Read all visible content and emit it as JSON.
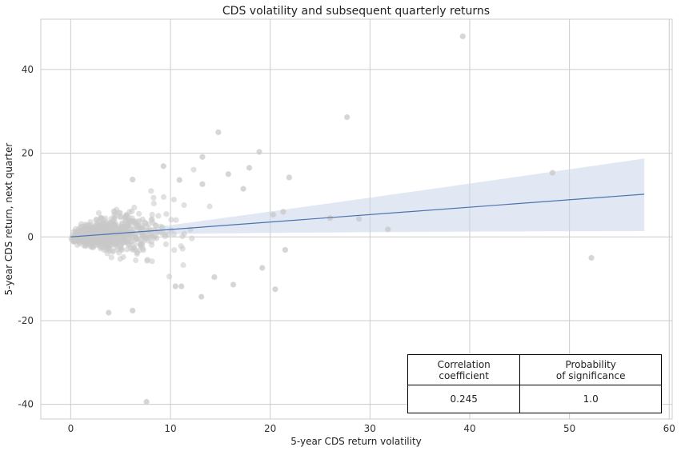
{
  "chart_data": {
    "type": "scatter",
    "title": "CDS volatility and subsequent quarterly returns",
    "xlabel": "5-year CDS return volatility",
    "ylabel": "5-year CDS return, next quarter",
    "xlim": [
      -3,
      60.3
    ],
    "ylim": [
      -43.5,
      52
    ],
    "xticks": [
      0,
      10,
      20,
      30,
      40,
      50,
      60
    ],
    "yticks": [
      -40,
      -20,
      0,
      20,
      40
    ],
    "grid": true,
    "point_color": "#c8c8c8",
    "regression": {
      "x_range": [
        0,
        57.5
      ],
      "y_at_x0": 0,
      "y_at_xmax": 10.2,
      "ci_upper_at_xmax": 18.6,
      "ci_lower_at_xmax": 1.5,
      "line_color": "#4c72b0",
      "band_color": "#c8d5ea"
    },
    "notable_points": [
      {
        "x": 39.3,
        "y": 47.9
      },
      {
        "x": 27.7,
        "y": 28.6
      },
      {
        "x": 14.8,
        "y": 25.0
      },
      {
        "x": 18.9,
        "y": 20.3
      },
      {
        "x": 13.2,
        "y": 19.1
      },
      {
        "x": 48.3,
        "y": 15.3
      },
      {
        "x": 9.3,
        "y": 16.9
      },
      {
        "x": 17.9,
        "y": 16.5
      },
      {
        "x": 15.8,
        "y": 15.0
      },
      {
        "x": 21.9,
        "y": 14.2
      },
      {
        "x": 6.2,
        "y": 13.7
      },
      {
        "x": 10.9,
        "y": 13.6
      },
      {
        "x": 13.2,
        "y": 12.6
      },
      {
        "x": 17.3,
        "y": 11.5
      },
      {
        "x": 26.0,
        "y": 4.5
      },
      {
        "x": 28.9,
        "y": 4.3
      },
      {
        "x": 31.8,
        "y": 1.8
      },
      {
        "x": 21.3,
        "y": 6.0
      },
      {
        "x": 20.3,
        "y": 5.3
      },
      {
        "x": 52.2,
        "y": -5.0
      },
      {
        "x": 21.5,
        "y": -3.1
      },
      {
        "x": 19.2,
        "y": -7.4
      },
      {
        "x": 14.4,
        "y": -9.6
      },
      {
        "x": 20.5,
        "y": -12.5
      },
      {
        "x": 16.3,
        "y": -11.4
      },
      {
        "x": 13.1,
        "y": -14.3
      },
      {
        "x": 10.5,
        "y": -11.8
      },
      {
        "x": 11.1,
        "y": -11.8
      },
      {
        "x": 3.8,
        "y": -18.1
      },
      {
        "x": 6.2,
        "y": -17.6
      },
      {
        "x": 7.6,
        "y": -39.4
      }
    ],
    "cluster": {
      "n": 900,
      "seed": 7
    }
  },
  "stats_table": {
    "header_corr": "Correlation\ncoefficient",
    "header_prob": "Probability\nof significance",
    "corr_value": "0.245",
    "prob_value": "1.0"
  }
}
